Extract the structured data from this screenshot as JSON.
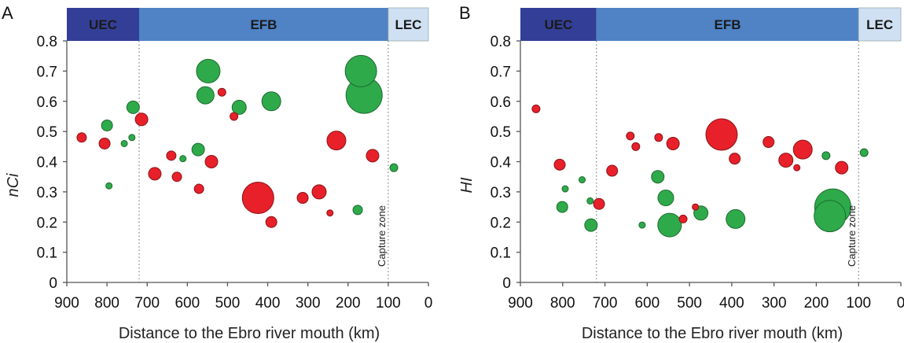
{
  "colors": {
    "group_red": "#e8202a",
    "group_red_stroke": "#8a1418",
    "group_green": "#2eaa4a",
    "group_green_stroke": "#1d6b30",
    "band_UEC": "#333f96",
    "band_EFB": "#4f83c6",
    "band_LEC": "#cfe0f3"
  },
  "chart_data": [
    {
      "type": "scatter",
      "subtype": "bubble",
      "panel": "A",
      "xlabel": "Distance to the Ebro river mouth (km)",
      "ylabel": "nCi",
      "xlim": [
        900,
        0
      ],
      "ylim": [
        0,
        0.8
      ],
      "xticks": [
        "900",
        "800",
        "700",
        "600",
        "500",
        "400",
        "300",
        "200",
        "100",
        "0"
      ],
      "yticks": [
        "0",
        "0.1",
        "0.2",
        "0.3",
        "0.4",
        "0.5",
        "0.6",
        "0.7",
        "0.8"
      ],
      "grid": false,
      "bands": [
        {
          "label": "UEC",
          "from": 900,
          "to": 720
        },
        {
          "label": "EFB",
          "from": 720,
          "to": 100
        },
        {
          "label": "LEC",
          "from": 100,
          "to": 0
        }
      ],
      "vlines": [
        720,
        100
      ],
      "annotation": {
        "text": "Capture zone",
        "x": 100
      },
      "series": [
        {
          "name": "red",
          "points": [
            {
              "x": 863,
              "y": 0.48,
              "size": 6
            },
            {
              "x": 806,
              "y": 0.46,
              "size": 7
            },
            {
              "x": 714,
              "y": 0.54,
              "size": 8
            },
            {
              "x": 681,
              "y": 0.36,
              "size": 8
            },
            {
              "x": 640,
              "y": 0.42,
              "size": 6
            },
            {
              "x": 626,
              "y": 0.35,
              "size": 6
            },
            {
              "x": 571,
              "y": 0.31,
              "size": 6
            },
            {
              "x": 540,
              "y": 0.4,
              "size": 8
            },
            {
              "x": 514,
              "y": 0.63,
              "size": 5
            },
            {
              "x": 484,
              "y": 0.55,
              "size": 5
            },
            {
              "x": 424,
              "y": 0.28,
              "size": 20
            },
            {
              "x": 391,
              "y": 0.2,
              "size": 7
            },
            {
              "x": 313,
              "y": 0.28,
              "size": 7
            },
            {
              "x": 272,
              "y": 0.3,
              "size": 9
            },
            {
              "x": 245,
              "y": 0.23,
              "size": 4
            },
            {
              "x": 229,
              "y": 0.47,
              "size": 12
            },
            {
              "x": 139,
              "y": 0.42,
              "size": 8
            }
          ]
        },
        {
          "name": "green",
          "points": [
            {
              "x": 800,
              "y": 0.52,
              "size": 7
            },
            {
              "x": 795,
              "y": 0.32,
              "size": 4
            },
            {
              "x": 757,
              "y": 0.46,
              "size": 4
            },
            {
              "x": 738,
              "y": 0.48,
              "size": 4
            },
            {
              "x": 735,
              "y": 0.58,
              "size": 8
            },
            {
              "x": 611,
              "y": 0.41,
              "size": 4
            },
            {
              "x": 573,
              "y": 0.44,
              "size": 8
            },
            {
              "x": 548,
              "y": 0.7,
              "size": 15
            },
            {
              "x": 555,
              "y": 0.62,
              "size": 11
            },
            {
              "x": 471,
              "y": 0.58,
              "size": 9
            },
            {
              "x": 391,
              "y": 0.6,
              "size": 12
            },
            {
              "x": 176,
              "y": 0.24,
              "size": 6
            },
            {
              "x": 160,
              "y": 0.62,
              "size": 23
            },
            {
              "x": 168,
              "y": 0.7,
              "size": 20
            },
            {
              "x": 86,
              "y": 0.38,
              "size": 5
            }
          ]
        }
      ]
    },
    {
      "type": "scatter",
      "subtype": "bubble",
      "panel": "B",
      "xlabel": "Distance to the Ebro river mouth (km)",
      "ylabel": "HI",
      "xlim": [
        900,
        0
      ],
      "ylim": [
        0,
        0.8
      ],
      "xticks": [
        "900",
        "800",
        "700",
        "600",
        "500",
        "400",
        "300",
        "200",
        "100",
        "0"
      ],
      "yticks": [
        "0",
        "0.1",
        "0.2",
        "0.3",
        "0.4",
        "0.5",
        "0.6",
        "0.7",
        "0.8"
      ],
      "grid": false,
      "bands": [
        {
          "label": "UEC",
          "from": 900,
          "to": 720
        },
        {
          "label": "EFB",
          "from": 720,
          "to": 100
        },
        {
          "label": "LEC",
          "from": 100,
          "to": 0
        }
      ],
      "vlines": [
        720,
        100
      ],
      "annotation": {
        "text": "Capture zone",
        "x": 100
      },
      "series": [
        {
          "name": "red",
          "points": [
            {
              "x": 863,
              "y": 0.575,
              "size": 5
            },
            {
              "x": 807,
              "y": 0.39,
              "size": 7
            },
            {
              "x": 714,
              "y": 0.26,
              "size": 7
            },
            {
              "x": 683,
              "y": 0.37,
              "size": 7
            },
            {
              "x": 640,
              "y": 0.485,
              "size": 5
            },
            {
              "x": 627,
              "y": 0.45,
              "size": 5
            },
            {
              "x": 573,
              "y": 0.48,
              "size": 5
            },
            {
              "x": 539,
              "y": 0.46,
              "size": 8
            },
            {
              "x": 515,
              "y": 0.21,
              "size": 5
            },
            {
              "x": 486,
              "y": 0.25,
              "size": 4
            },
            {
              "x": 424,
              "y": 0.49,
              "size": 20
            },
            {
              "x": 393,
              "y": 0.41,
              "size": 7
            },
            {
              "x": 313,
              "y": 0.465,
              "size": 7
            },
            {
              "x": 272,
              "y": 0.405,
              "size": 9
            },
            {
              "x": 246,
              "y": 0.38,
              "size": 4
            },
            {
              "x": 232,
              "y": 0.44,
              "size": 12
            },
            {
              "x": 140,
              "y": 0.38,
              "size": 8
            }
          ]
        },
        {
          "name": "green",
          "points": [
            {
              "x": 794,
              "y": 0.31,
              "size": 4
            },
            {
              "x": 801,
              "y": 0.25,
              "size": 7
            },
            {
              "x": 754,
              "y": 0.34,
              "size": 4
            },
            {
              "x": 735,
              "y": 0.27,
              "size": 4
            },
            {
              "x": 733,
              "y": 0.19,
              "size": 8
            },
            {
              "x": 612,
              "y": 0.19,
              "size": 4
            },
            {
              "x": 575,
              "y": 0.35,
              "size": 8
            },
            {
              "x": 556,
              "y": 0.28,
              "size": 10
            },
            {
              "x": 547,
              "y": 0.19,
              "size": 15
            },
            {
              "x": 473,
              "y": 0.23,
              "size": 9
            },
            {
              "x": 391,
              "y": 0.21,
              "size": 12
            },
            {
              "x": 177,
              "y": 0.42,
              "size": 5
            },
            {
              "x": 161,
              "y": 0.25,
              "size": 23
            },
            {
              "x": 168,
              "y": 0.22,
              "size": 20
            },
            {
              "x": 87,
              "y": 0.43,
              "size": 5
            }
          ]
        }
      ]
    }
  ]
}
